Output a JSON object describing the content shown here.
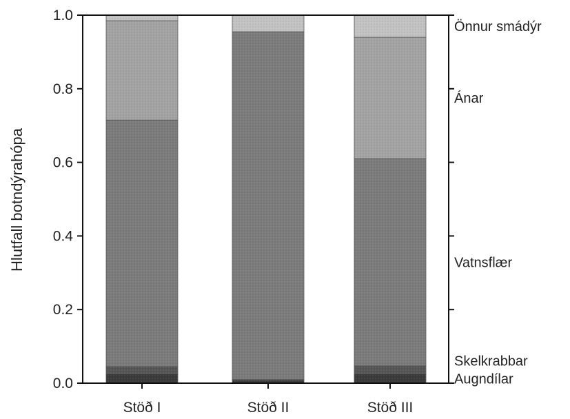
{
  "chart_data": {
    "type": "bar",
    "stacked": true,
    "ylabel": "Hlutfall botndýrahópa",
    "ylim": [
      0,
      1.0
    ],
    "y_ticks": [
      "0.0",
      "0.2",
      "0.4",
      "0.6",
      "0.8",
      "1.0"
    ],
    "categories": [
      "Stöð I",
      "Stöð II",
      "Stöð III"
    ],
    "series": [
      {
        "name": "Augndílar",
        "values": [
          0.025,
          0.008,
          0.025
        ],
        "color": "#3a3a3a"
      },
      {
        "name": "Skelkrabbar",
        "values": [
          0.02,
          0.002,
          0.022
        ],
        "color": "#555555"
      },
      {
        "name": "Vatnsflær",
        "values": [
          0.67,
          0.945,
          0.563
        ],
        "color": "#7b7b7b"
      },
      {
        "name": "Ánar",
        "values": [
          0.27,
          0.0,
          0.33
        ],
        "color": "#a3a3a3"
      },
      {
        "name": "Önnur smádýr",
        "values": [
          0.015,
          0.045,
          0.06
        ],
        "color": "#c2c2c2"
      }
    ],
    "legend_placement": "right"
  }
}
